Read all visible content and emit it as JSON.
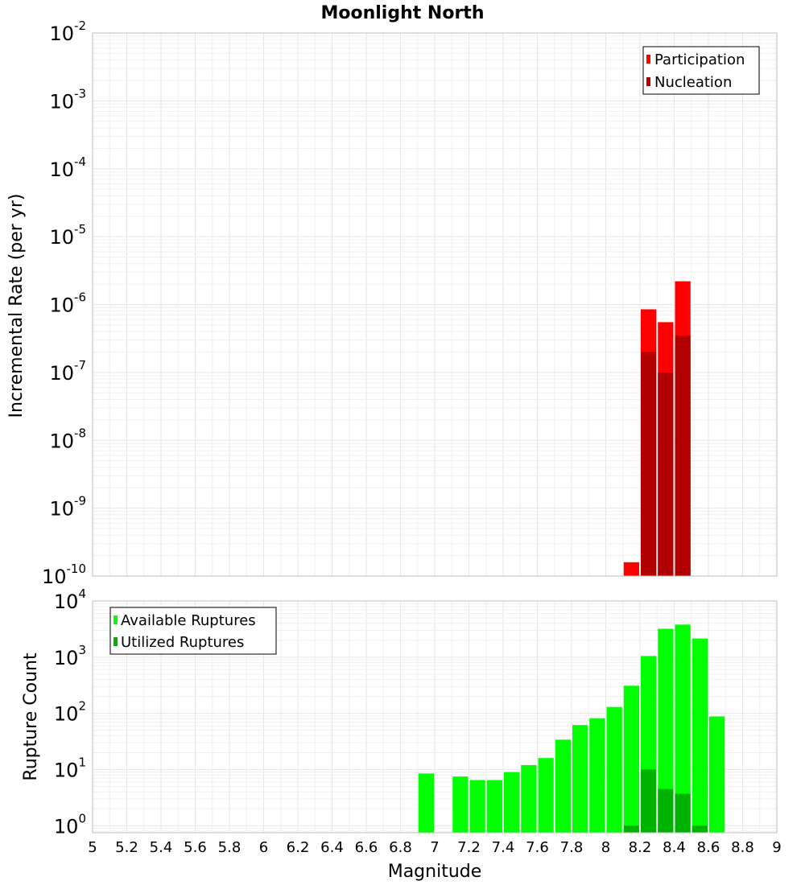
{
  "chart_data": [
    {
      "type": "bar",
      "title": "Moonlight North",
      "xlabel": "",
      "ylabel": "Incremental Rate (per yr)",
      "xlim": [
        5,
        9
      ],
      "ylim": [
        1e-10,
        0.01
      ],
      "yscale": "log",
      "bar_width": 0.1,
      "grid": true,
      "legend_placement": "top-right",
      "y_ticks": [
        {
          "base": "10",
          "exp": "-10",
          "value": 1e-10
        },
        {
          "base": "10",
          "exp": "-9",
          "value": 1e-09
        },
        {
          "base": "10",
          "exp": "-8",
          "value": 1e-08
        },
        {
          "base": "10",
          "exp": "-7",
          "value": 1e-07
        },
        {
          "base": "10",
          "exp": "-6",
          "value": 1e-06
        },
        {
          "base": "10",
          "exp": "-5",
          "value": 1e-05
        },
        {
          "base": "10",
          "exp": "-4",
          "value": 0.0001
        },
        {
          "base": "10",
          "exp": "-3",
          "value": 0.001
        },
        {
          "base": "10",
          "exp": "-2",
          "value": 0.01
        }
      ],
      "series": [
        {
          "name": "Participation",
          "color": "#ff0000",
          "points": [
            {
              "x": 8.15,
              "y": 1.6e-10
            },
            {
              "x": 8.25,
              "y": 8.5e-07
            },
            {
              "x": 8.35,
              "y": 5.5e-07
            },
            {
              "x": 8.45,
              "y": 2.2e-06
            }
          ]
        },
        {
          "name": "Nucleation",
          "color": "#b20000",
          "points": [
            {
              "x": 8.25,
              "y": 2e-07
            },
            {
              "x": 8.35,
              "y": 1e-07
            },
            {
              "x": 8.45,
              "y": 3.5e-07
            }
          ]
        }
      ]
    },
    {
      "type": "bar",
      "title": "",
      "xlabel": "Magnitude",
      "ylabel": "Rupture Count",
      "xlim": [
        5,
        9
      ],
      "ylim": [
        0.75,
        10000
      ],
      "yscale": "log",
      "bar_width": 0.1,
      "grid": true,
      "legend_placement": "top-left",
      "x_ticks": [
        "5",
        "5.2",
        "5.4",
        "5.6",
        "5.8",
        "6",
        "6.2",
        "6.4",
        "6.6",
        "6.8",
        "7",
        "7.2",
        "7.4",
        "7.6",
        "7.8",
        "8",
        "8.2",
        "8.4",
        "8.6",
        "8.8",
        "9"
      ],
      "y_ticks": [
        {
          "base": "10",
          "exp": "0",
          "value": 1
        },
        {
          "base": "10",
          "exp": "1",
          "value": 10
        },
        {
          "base": "10",
          "exp": "2",
          "value": 100
        },
        {
          "base": "10",
          "exp": "3",
          "value": 1000
        },
        {
          "base": "10",
          "exp": "4",
          "value": 10000
        }
      ],
      "series": [
        {
          "name": "Available Ruptures",
          "color": "#00ff00",
          "points": [
            {
              "x": 6.95,
              "y": 8.5
            },
            {
              "x": 7.15,
              "y": 7.5
            },
            {
              "x": 7.25,
              "y": 6.5
            },
            {
              "x": 7.35,
              "y": 6.5
            },
            {
              "x": 7.45,
              "y": 9
            },
            {
              "x": 7.55,
              "y": 12
            },
            {
              "x": 7.65,
              "y": 16
            },
            {
              "x": 7.75,
              "y": 34
            },
            {
              "x": 7.85,
              "y": 62
            },
            {
              "x": 7.95,
              "y": 82
            },
            {
              "x": 8.05,
              "y": 130
            },
            {
              "x": 8.15,
              "y": 310
            },
            {
              "x": 8.25,
              "y": 1050
            },
            {
              "x": 8.35,
              "y": 3200
            },
            {
              "x": 8.45,
              "y": 3800
            },
            {
              "x": 8.55,
              "y": 2150
            },
            {
              "x": 8.65,
              "y": 88
            }
          ]
        },
        {
          "name": "Utilized Ruptures",
          "color": "#00b200",
          "points": [
            {
              "x": 8.15,
              "y": 1
            },
            {
              "x": 8.25,
              "y": 10
            },
            {
              "x": 8.35,
              "y": 4.5
            },
            {
              "x": 8.45,
              "y": 3.7
            },
            {
              "x": 8.55,
              "y": 1
            }
          ]
        }
      ]
    }
  ]
}
